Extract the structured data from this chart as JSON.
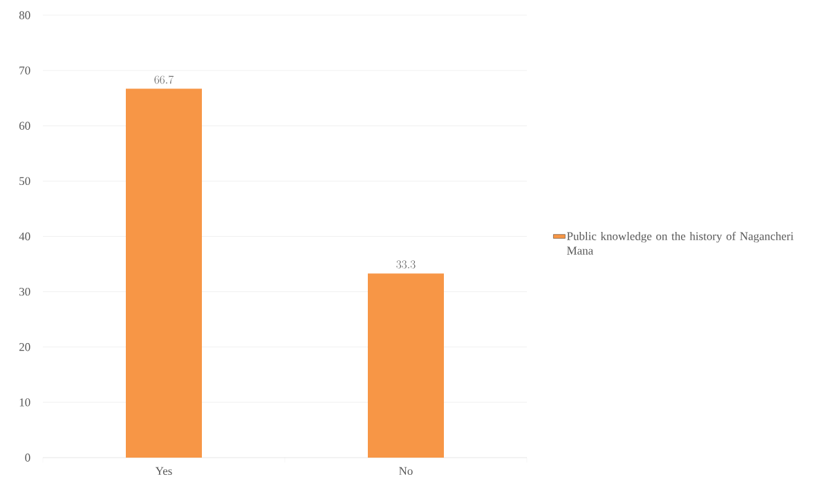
{
  "chart_data": {
    "type": "bar",
    "categories": [
      "Yes",
      "No"
    ],
    "series": [
      {
        "name": "Public knowledge on the history of Nagancheri Mana",
        "color": "#f79646",
        "values": [
          66.7,
          33.3
        ]
      }
    ],
    "ylim": [
      0,
      80
    ],
    "yticks": [
      0,
      10,
      20,
      30,
      40,
      50,
      60,
      70,
      80
    ],
    "grid": "y",
    "legend": "right",
    "data_labels": true
  }
}
